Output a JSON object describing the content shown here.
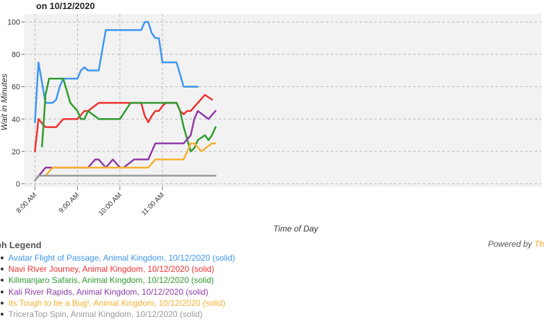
{
  "header": {
    "title": "on 10/12/2020"
  },
  "legend_title": "ph Legend",
  "powered_by": {
    "prefix": "Powered by ",
    "brand": "Th"
  },
  "chart_data": {
    "type": "line",
    "xlabel": "Time of Day",
    "ylabel": "Wait in Minutes",
    "x_range_minutes": [
      465,
      1195
    ],
    "ylim": [
      -2,
      105
    ],
    "y_ticks": [
      0,
      20,
      40,
      60,
      80,
      100
    ],
    "x_ticks": [
      {
        "minute": 480,
        "label": "8:00 AM"
      },
      {
        "minute": 540,
        "label": "9:00 AM"
      },
      {
        "minute": 600,
        "label": "10:00 AM"
      },
      {
        "minute": 660,
        "label": "11:00 AM"
      }
    ],
    "grid": true,
    "background": "#f2f2f2",
    "series": [
      {
        "name": "Avatar Flight of Passage, Animal Kingdom, 10/12/2020 (solid)",
        "color": "#3d96f0",
        "points": [
          [
            480,
            38
          ],
          [
            485,
            75
          ],
          [
            495,
            50
          ],
          [
            505,
            50
          ],
          [
            510,
            52
          ],
          [
            515,
            60
          ],
          [
            520,
            65
          ],
          [
            540,
            65
          ],
          [
            545,
            70
          ],
          [
            550,
            72
          ],
          [
            555,
            70
          ],
          [
            570,
            70
          ],
          [
            580,
            95
          ],
          [
            630,
            95
          ],
          [
            635,
            100
          ],
          [
            640,
            100
          ],
          [
            645,
            93
          ],
          [
            650,
            90
          ],
          [
            655,
            90
          ],
          [
            660,
            75
          ],
          [
            680,
            75
          ],
          [
            690,
            60
          ],
          [
            710,
            60
          ]
        ]
      },
      {
        "name": "Navi River Journey, Animal Kingdom, 10/12/2020 (solid)",
        "color": "#ee3030",
        "points": [
          [
            480,
            20
          ],
          [
            485,
            40
          ],
          [
            495,
            35
          ],
          [
            510,
            35
          ],
          [
            520,
            40
          ],
          [
            540,
            40
          ],
          [
            550,
            45
          ],
          [
            555,
            45
          ],
          [
            570,
            50
          ],
          [
            630,
            50
          ],
          [
            635,
            42
          ],
          [
            640,
            38
          ],
          [
            645,
            42
          ],
          [
            650,
            45
          ],
          [
            655,
            45
          ],
          [
            660,
            48
          ],
          [
            665,
            50
          ],
          [
            665,
            50
          ],
          [
            680,
            50
          ],
          [
            685,
            45
          ],
          [
            690,
            43
          ],
          [
            695,
            45
          ],
          [
            700,
            45
          ],
          [
            710,
            50
          ],
          [
            720,
            55
          ],
          [
            730,
            52
          ]
        ]
      },
      {
        "name": "Kilimanjaro Safaris, Animal Kingdom, 10/12/2020 (solid)",
        "color": "#2e9a2e",
        "points": [
          [
            490,
            23
          ],
          [
            495,
            55
          ],
          [
            500,
            65
          ],
          [
            520,
            65
          ],
          [
            530,
            50
          ],
          [
            540,
            45
          ],
          [
            545,
            40
          ],
          [
            550,
            40
          ],
          [
            555,
            45
          ],
          [
            570,
            40
          ],
          [
            600,
            40
          ],
          [
            615,
            50
          ],
          [
            680,
            50
          ],
          [
            685,
            45
          ],
          [
            690,
            35
          ],
          [
            700,
            20
          ],
          [
            705,
            22
          ],
          [
            710,
            27
          ],
          [
            720,
            30
          ],
          [
            725,
            27
          ],
          [
            730,
            30
          ],
          [
            735,
            35
          ]
        ]
      },
      {
        "name": "Kali River Rapids, Animal Kingdom, 10/12/2020 (solid)",
        "color": "#8e3aa8",
        "points": [
          [
            480,
            2
          ],
          [
            495,
            10
          ],
          [
            555,
            10
          ],
          [
            565,
            15
          ],
          [
            570,
            15
          ],
          [
            580,
            10
          ],
          [
            590,
            15
          ],
          [
            600,
            10
          ],
          [
            605,
            10
          ],
          [
            620,
            15
          ],
          [
            640,
            15
          ],
          [
            650,
            25
          ],
          [
            690,
            25
          ],
          [
            700,
            30
          ],
          [
            705,
            40
          ],
          [
            710,
            45
          ],
          [
            725,
            40
          ],
          [
            735,
            45
          ]
        ]
      },
      {
        "name": "Its Tough to be a Bug!, Animal Kingdom, 10/12/2020 (solid)",
        "color": "#f8b030",
        "points": [
          [
            480,
            2
          ],
          [
            485,
            5
          ],
          [
            495,
            5
          ],
          [
            505,
            10
          ],
          [
            640,
            10
          ],
          [
            650,
            15
          ],
          [
            690,
            15
          ],
          [
            700,
            25
          ],
          [
            705,
            25
          ],
          [
            715,
            20
          ],
          [
            730,
            25
          ],
          [
            735,
            25
          ]
        ]
      },
      {
        "name": "TriceraTop Spin, Animal Kingdom, 10/12/2020 (solid)",
        "color": "#999999",
        "points": [
          [
            480,
            2
          ],
          [
            485,
            5
          ],
          [
            735,
            5
          ]
        ]
      }
    ]
  }
}
